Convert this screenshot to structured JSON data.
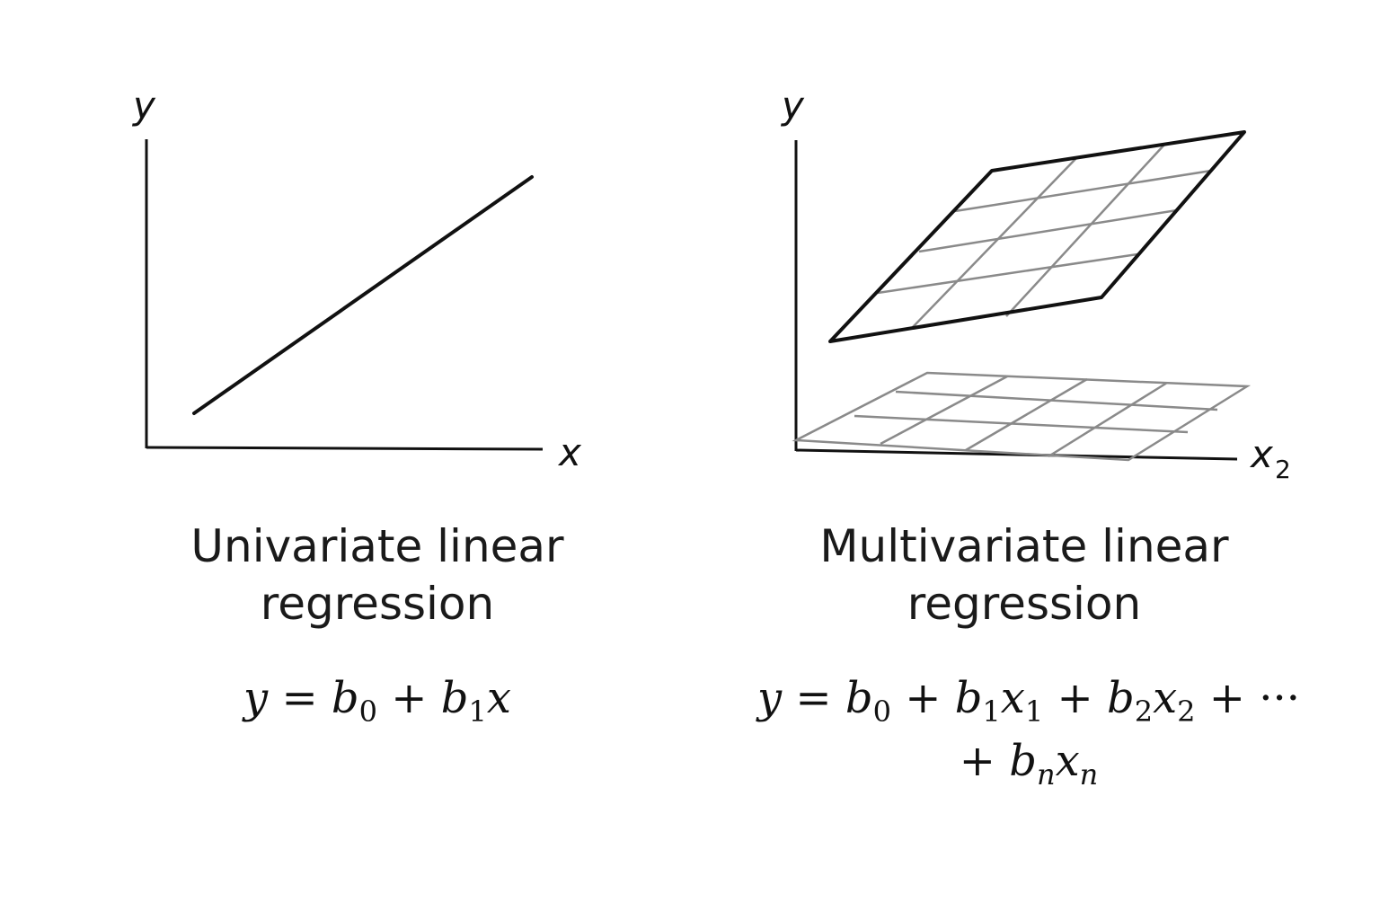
{
  "left_panel": {
    "axis_y": "y",
    "axis_x": "x",
    "title_line1": "Univariate linear",
    "title_line2": "regression",
    "formula": {
      "y": "y",
      "eq": "=",
      "b": "b",
      "sub0": "0",
      "plus": "+",
      "sub1": "1",
      "x": "x"
    }
  },
  "right_panel": {
    "axis_y": "y",
    "axis_x": "x",
    "axis_x_sub": "2",
    "title_line1": "Multivariate linear",
    "title_line2": "regression",
    "formula": {
      "y": "y",
      "eq": "=",
      "b": "b",
      "x": "x",
      "plus": "+",
      "sub0": "0",
      "sub1": "1",
      "sub2": "2",
      "subn": "n",
      "dots": "···"
    }
  },
  "colors": {
    "ink": "#111111",
    "grid": "#8a8a8a"
  }
}
